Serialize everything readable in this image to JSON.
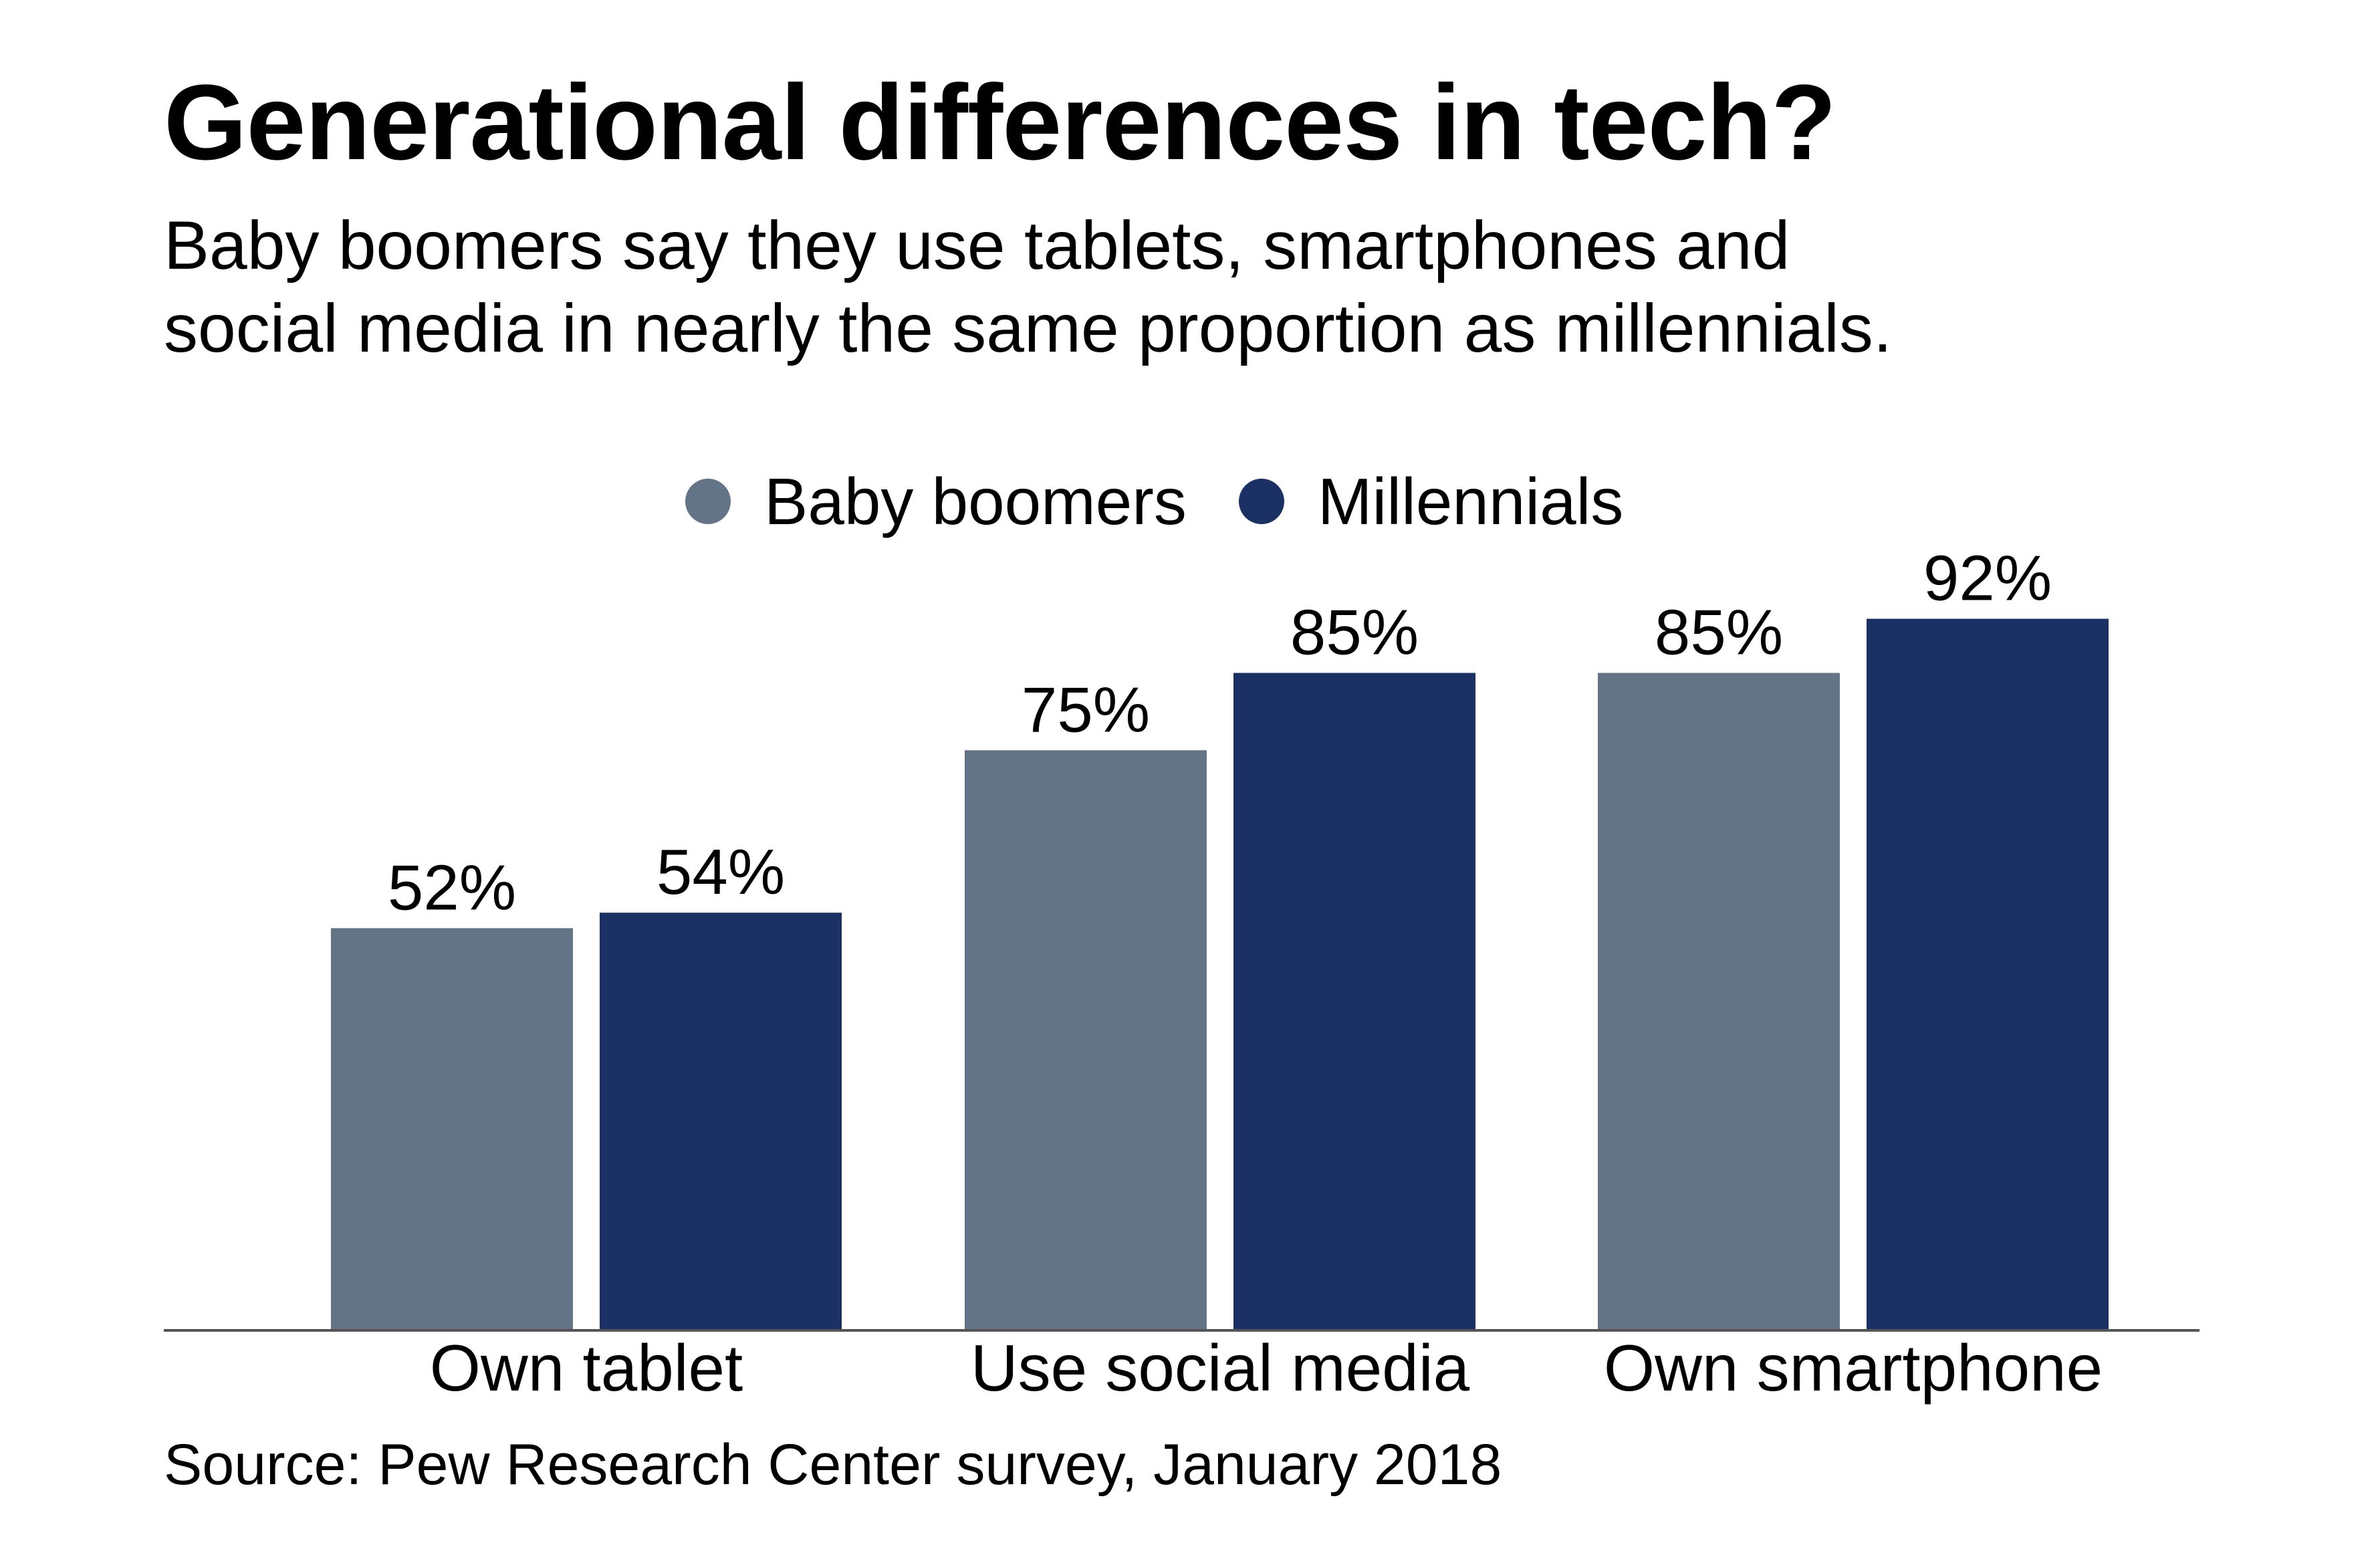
{
  "header": {
    "title": "Generational differences in tech?",
    "subtitle_line1": "Baby boomers say they use tablets, smartphones and",
    "subtitle_line2": "social media in nearly the same proportion as millennials."
  },
  "legend": {
    "items": [
      {
        "label": "Baby boomers",
        "color": "#647487"
      },
      {
        "label": "Millennials",
        "color": "#1b3065"
      }
    ]
  },
  "footer": {
    "source": "Source: Pew Research Center survey, January 2018"
  },
  "chart_data": {
    "type": "bar",
    "title": "Generational differences in tech?",
    "categories": [
      "Own tablet",
      "Use social media",
      "Own smartphone"
    ],
    "series": [
      {
        "name": "Baby boomers",
        "values": [
          52,
          75,
          85
        ],
        "labels": [
          "52%",
          "75%",
          "85%"
        ],
        "color": "#647487"
      },
      {
        "name": "Millennials",
        "values": [
          54,
          85,
          92
        ],
        "labels": [
          "54%",
          "85%",
          "92%"
        ],
        "color": "#1b3065"
      }
    ],
    "unit": "%",
    "ylim": [
      0,
      100
    ],
    "grid": false,
    "legend_position": "top-center",
    "axis_color": "#555555"
  }
}
